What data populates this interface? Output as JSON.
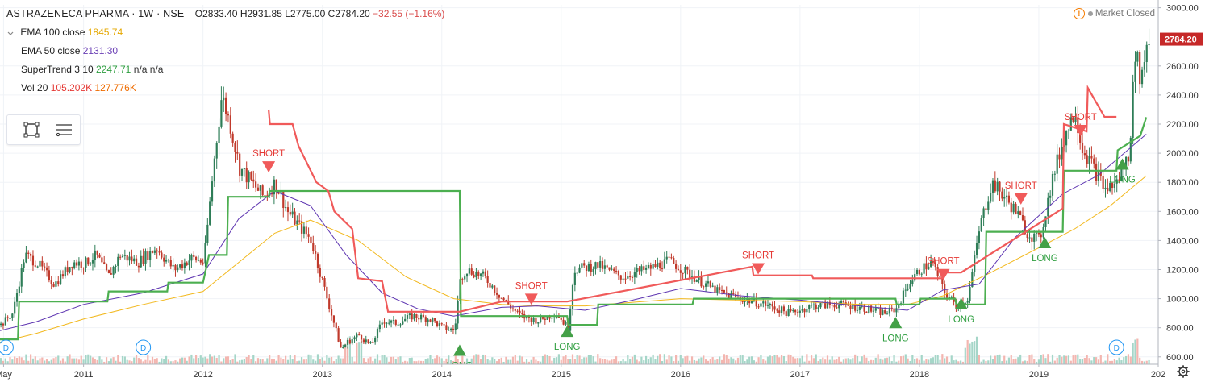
{
  "header": {
    "title": "ASTRAZENECA PHARMA · 1W · NSE",
    "open": "O2833.40",
    "high": "H2931.85",
    "low": "L2775.00",
    "close": "C2784.20",
    "change": "−32.55 (−1.16%)"
  },
  "indicators": [
    {
      "name": "EMA 100 close",
      "values": [
        "1845.74"
      ],
      "colors": [
        "#e5a800"
      ]
    },
    {
      "name": "EMA 50 close",
      "values": [
        "2131.30"
      ],
      "colors": [
        "#6a3fb5"
      ]
    },
    {
      "name": "SuperTrend 3 10",
      "values": [
        "2247.71",
        "n/a",
        "n/a"
      ],
      "colors": [
        "#2e9e3f",
        "#333333",
        "#333333"
      ]
    },
    {
      "name": "Vol 20",
      "values": [
        "105.202K",
        "127.776K"
      ],
      "colors": [
        "#e53935",
        "#ef6c00"
      ]
    }
  ],
  "market_status": "Market Closed",
  "icons": {
    "toolbar": [
      "rectangle-select-icon",
      "list-lines-icon"
    ],
    "status": "warning-icon",
    "settings": "gear-icon"
  },
  "colors": {
    "up": "#2e7d57",
    "down": "#c0392b",
    "ema100": "#f2b81d",
    "ema50": "#5e35b1",
    "supertrend_up": "#4caf50",
    "supertrend_down": "#f05a5a",
    "price_line": "#c0392b",
    "price_badge_bg": "#c62828"
  },
  "chart_data": {
    "type": "line",
    "title": "ASTRAZENECA PHARMA · 1W · NSE",
    "x_axis": {
      "ticks": [
        "May",
        "2011",
        "2012",
        "2013",
        "2014",
        "2015",
        "2016",
        "2017",
        "2018",
        "2019",
        "202"
      ],
      "range": [
        "2010-05",
        "2020-01"
      ]
    },
    "y_axis": {
      "ticks": [
        600,
        800,
        1000,
        1200,
        1400,
        1600,
        1800,
        2000,
        2200,
        2400,
        2600,
        3000
      ],
      "range": [
        560,
        3020
      ],
      "last_price_label": "2784.20"
    },
    "series": [
      {
        "name": "EMA 100 close",
        "x": [
          2010.3,
          2010.6,
          2011.0,
          2011.5,
          2012.0,
          2012.3,
          2012.6,
          2012.9,
          2013.3,
          2013.7,
          2014.1,
          2014.5,
          2014.8,
          2015.2,
          2015.6,
          2016.0,
          2016.5,
          2017.0,
          2017.5,
          2017.9,
          2018.2,
          2018.6,
          2019.0,
          2019.3,
          2019.6,
          2019.9
        ],
        "values": [
          700,
          760,
          860,
          960,
          1050,
          1250,
          1450,
          1540,
          1400,
          1150,
          1000,
          960,
          950,
          950,
          975,
          1000,
          990,
          980,
          960,
          960,
          1020,
          1180,
          1350,
          1480,
          1640,
          1845
        ]
      },
      {
        "name": "EMA 50 close",
        "x": [
          2010.3,
          2010.6,
          2011.0,
          2011.5,
          2012.0,
          2012.3,
          2012.6,
          2012.9,
          2013.2,
          2013.5,
          2013.8,
          2014.1,
          2014.5,
          2014.8,
          2015.2,
          2015.6,
          2016.0,
          2016.5,
          2017.0,
          2017.5,
          2017.9,
          2018.2,
          2018.5,
          2018.8,
          2019.2,
          2019.5,
          2019.9
        ],
        "values": [
          780,
          840,
          960,
          1040,
          1170,
          1550,
          1740,
          1640,
          1300,
          1040,
          930,
          880,
          940,
          950,
          920,
          990,
          1070,
          1020,
          990,
          950,
          920,
          1060,
          1100,
          1420,
          1720,
          1850,
          2131
        ]
      },
      {
        "name": "SuperTrend 3 10 (long)",
        "x": [
          2010.3,
          2010.45,
          2010.46,
          2011.2,
          2011.21,
          2011.7,
          2011.71,
          2012.0,
          2012.05,
          2012.2,
          2012.21,
          2012.55,
          2012.56,
          2014.15,
          2014.16,
          2014.5,
          2014.51,
          2015.05,
          2015.06,
          2015.3,
          2015.31,
          2016.1,
          2016.11,
          2016.6,
          2016.61,
          2017.8,
          2017.81,
          2018.0,
          2018.01,
          2018.3,
          2018.31,
          2018.55,
          2018.56,
          2018.85,
          2018.86,
          2019.2,
          2019.21,
          2019.4,
          2019.41,
          2019.65,
          2019.66,
          2019.85,
          2019.9
        ],
        "values": [
          720,
          720,
          980,
          980,
          1050,
          1050,
          1110,
          1110,
          1300,
          1300,
          1700,
          1700,
          1740,
          1740,
          880,
          880,
          880,
          880,
          820,
          820,
          960,
          960,
          1000,
          1000,
          1000,
          1000,
          960,
          960,
          1000,
          1000,
          960,
          960,
          1460,
          1460,
          1460,
          1460,
          1880,
          1880,
          1880,
          1880,
          2020,
          2120,
          2247
        ]
      },
      {
        "name": "SuperTrend 3 10 (short)",
        "x": [
          2012.55,
          2012.56,
          2012.75,
          2012.8,
          2012.95,
          2013.05,
          2013.1,
          2013.25,
          2013.3,
          2013.5,
          2013.55,
          2014.15,
          2014.5,
          2014.51,
          2015.0,
          2015.05,
          2016.6,
          2016.61,
          2017.1,
          2017.11,
          2017.8,
          2018.2,
          2018.21,
          2018.35,
          2019.2,
          2019.21,
          2019.4,
          2019.41,
          2019.55,
          2019.65
        ],
        "values": [
          2300,
          2200,
          2200,
          2050,
          1800,
          1740,
          1600,
          1480,
          1140,
          1120,
          910,
          910,
          980,
          980,
          980,
          980,
          1220,
          1160,
          1160,
          1140,
          1140,
          1140,
          1180,
          1180,
          1620,
          2200,
          2150,
          2450,
          2250,
          2250
        ]
      }
    ],
    "signals": [
      {
        "label": "SHORT",
        "x": 2012.55,
        "y": 1900,
        "type": "short"
      },
      {
        "label": "LONG",
        "x": 2014.15,
        "y": 640,
        "type": "long"
      },
      {
        "label": "SHORT",
        "x": 2014.75,
        "y": 990,
        "type": "short"
      },
      {
        "label": "LONG",
        "x": 2015.05,
        "y": 770,
        "type": "long"
      },
      {
        "label": "SHORT",
        "x": 2016.65,
        "y": 1200,
        "type": "short"
      },
      {
        "label": "LONG",
        "x": 2017.8,
        "y": 830,
        "type": "long"
      },
      {
        "label": "SHORT",
        "x": 2018.2,
        "y": 1160,
        "type": "short"
      },
      {
        "label": "LONG",
        "x": 2018.35,
        "y": 960,
        "type": "long"
      },
      {
        "label": "SHORT",
        "x": 2018.85,
        "y": 1680,
        "type": "short"
      },
      {
        "label": "LONG",
        "x": 2019.05,
        "y": 1380,
        "type": "long"
      },
      {
        "label": "SHORT",
        "x": 2019.35,
        "y": 2150,
        "type": "short"
      },
      {
        "label": "LONG",
        "x": 2019.7,
        "y": 1920,
        "type": "long"
      }
    ],
    "price_path": {
      "x": [
        2010.3,
        2010.4,
        2010.5,
        2010.6,
        2010.75,
        2010.9,
        2011.0,
        2011.1,
        2011.2,
        2011.3,
        2011.45,
        2011.6,
        2011.75,
        2011.9,
        2012.0,
        2012.08,
        2012.15,
        2012.22,
        2012.3,
        2012.4,
        2012.5,
        2012.6,
        2012.7,
        2012.8,
        2012.9,
        2013.0,
        2013.1,
        2013.15,
        2013.2,
        2013.3,
        2013.4,
        2013.5,
        2013.6,
        2013.75,
        2013.9,
        2014.0,
        2014.1,
        2014.15,
        2014.2,
        2014.35,
        2014.5,
        2014.65,
        2014.8,
        2014.95,
        2015.05,
        2015.1,
        2015.3,
        2015.5,
        2015.7,
        2015.9,
        2016.1,
        2016.3,
        2016.5,
        2016.7,
        2016.9,
        2017.1,
        2017.3,
        2017.5,
        2017.7,
        2017.8,
        2017.9,
        2018.0,
        2018.1,
        2018.2,
        2018.3,
        2018.4,
        2018.5,
        2018.6,
        2018.7,
        2018.8,
        2018.9,
        2019.0,
        2019.1,
        2019.2,
        2019.3,
        2019.35,
        2019.45,
        2019.55,
        2019.65,
        2019.75,
        2019.8,
        2019.85,
        2019.9
      ],
      "values": [
        820,
        900,
        1300,
        1250,
        1100,
        1250,
        1240,
        1300,
        1150,
        1300,
        1250,
        1350,
        1200,
        1280,
        1250,
        1900,
        2400,
        2200,
        1900,
        1800,
        1700,
        1800,
        1600,
        1500,
        1400,
        1100,
        800,
        650,
        700,
        750,
        680,
        850,
        830,
        880,
        860,
        800,
        780,
        1150,
        1200,
        1150,
        1000,
        880,
        850,
        900,
        800,
        1200,
        1230,
        1150,
        1200,
        1260,
        1150,
        1050,
        1000,
        960,
        900,
        950,
        960,
        940,
        900,
        930,
        1100,
        1200,
        1250,
        1050,
        950,
        1000,
        1500,
        1800,
        1700,
        1600,
        1450,
        1400,
        1800,
        2100,
        2300,
        2050,
        1900,
        1750,
        1800,
        2000,
        2700,
        2500,
        2780
      ]
    },
    "volume_spikes_x": [
      2013.2,
      2013.3,
      2018.4,
      2018.45,
      2019.8
    ]
  }
}
